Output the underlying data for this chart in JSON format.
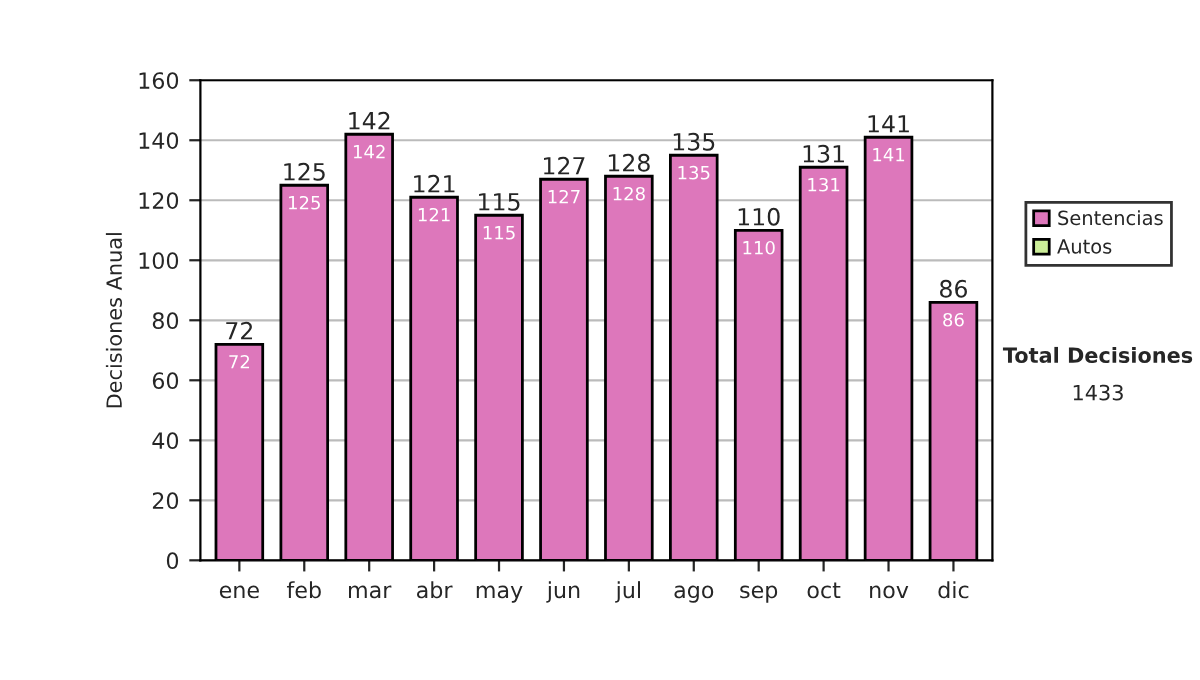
{
  "chart_data": {
    "type": "bar",
    "stacked": true,
    "ylabel": "Decisiones Anual",
    "categories": [
      "ene",
      "feb",
      "mar",
      "abr",
      "may",
      "jun",
      "jul",
      "ago",
      "sep",
      "oct",
      "nov",
      "dic"
    ],
    "series": [
      {
        "name": "Sentencias",
        "color": "#dd77bb",
        "values": [
          72,
          125,
          142,
          121,
          115,
          127,
          128,
          135,
          110,
          131,
          141,
          86
        ]
      },
      {
        "name": "Autos",
        "color": "#ccee99",
        "values": [
          null,
          null,
          null,
          null,
          null,
          null,
          null,
          null,
          null,
          null,
          null,
          null
        ]
      }
    ],
    "totals": [
      "72",
      "125",
      "142",
      "121",
      "115",
      "127",
      "128",
      "135",
      "110",
      "131",
      "141",
      "86"
    ],
    "data_labels": true,
    "ylim": [
      0,
      160
    ],
    "yticks": [
      0,
      20,
      40,
      60,
      80,
      100,
      120,
      140,
      160
    ],
    "grid": "y",
    "legend": "right",
    "annotations": [
      "Total Decisiones",
      "1433"
    ]
  }
}
